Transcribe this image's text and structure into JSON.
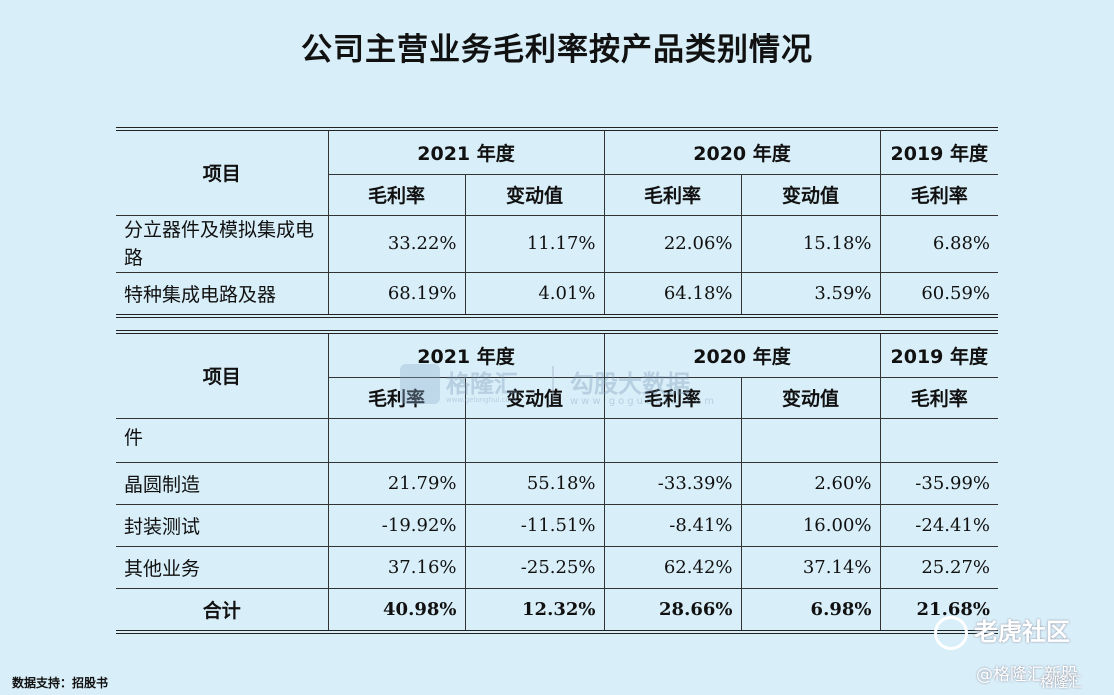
{
  "title": "公司主营业务毛利率按产品类别情况",
  "headers": {
    "item": "项目",
    "years": [
      "2021 年度",
      "2020 年度",
      "2019 年度"
    ],
    "gross_margin": "毛利率",
    "change": "变动值"
  },
  "table1": {
    "rows": [
      {
        "label": "分立器件及模拟集成电路",
        "values": [
          "33.22%",
          "11.17%",
          "22.06%",
          "15.18%",
          "6.88%"
        ]
      },
      {
        "label": "特种集成电路及器",
        "values": [
          "68.19%",
          "4.01%",
          "64.18%",
          "3.59%",
          "60.59%"
        ]
      }
    ]
  },
  "table2": {
    "continuation_label": "件",
    "rows": [
      {
        "label": "晶圆制造",
        "values": [
          "21.79%",
          "55.18%",
          "-33.39%",
          "2.60%",
          "-35.99%"
        ]
      },
      {
        "label": "封装测试",
        "values": [
          "-19.92%",
          "-11.51%",
          "-8.41%",
          "16.00%",
          "-24.41%"
        ]
      },
      {
        "label": "其他业务",
        "values": [
          "37.16%",
          "-25.25%",
          "62.42%",
          "37.14%",
          "25.27%"
        ]
      }
    ],
    "total": {
      "label": "合计",
      "values": [
        "40.98%",
        "12.32%",
        "28.66%",
        "6.98%",
        "21.68%"
      ]
    }
  },
  "source": "数据支持：招股书",
  "watermark": {
    "brand": "格隆汇",
    "slogan": "勾股大数据",
    "url": "www.gogudata.com",
    "brand_url": "www.gelonghui.com"
  },
  "overlay": {
    "community": "老虎社区",
    "handle": "@格隆汇新股",
    "tag": "格隆汇"
  }
}
